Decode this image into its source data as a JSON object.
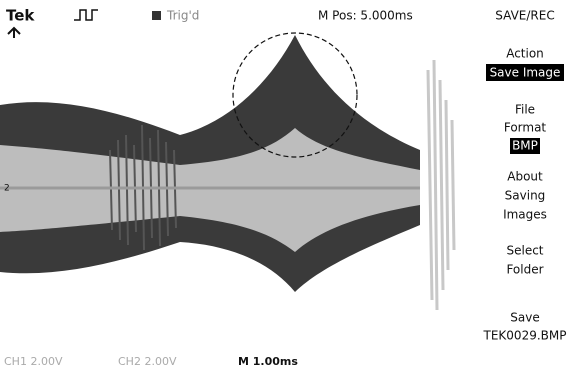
{
  "header": {
    "brand": "Tek",
    "trigger_status": "Trig'd",
    "position": "M Pos: 5.000ms",
    "menu_title": "SAVE/REC"
  },
  "channel_marker": "2",
  "menu": {
    "action_label": "Action",
    "action_value": "Save Image",
    "format_label_1": "File",
    "format_label_2": "Format",
    "format_value": "BMP",
    "about_1": "About",
    "about_2": "Saving",
    "about_3": "Images",
    "folder_1": "Select",
    "folder_2": "Folder",
    "save_label": "Save",
    "save_file": "TEK0029.BMP"
  },
  "footer": {
    "ch1": "CH1 2.00V",
    "ch2": "CH2 2.00V",
    "timebase": "M 1.00ms"
  }
}
